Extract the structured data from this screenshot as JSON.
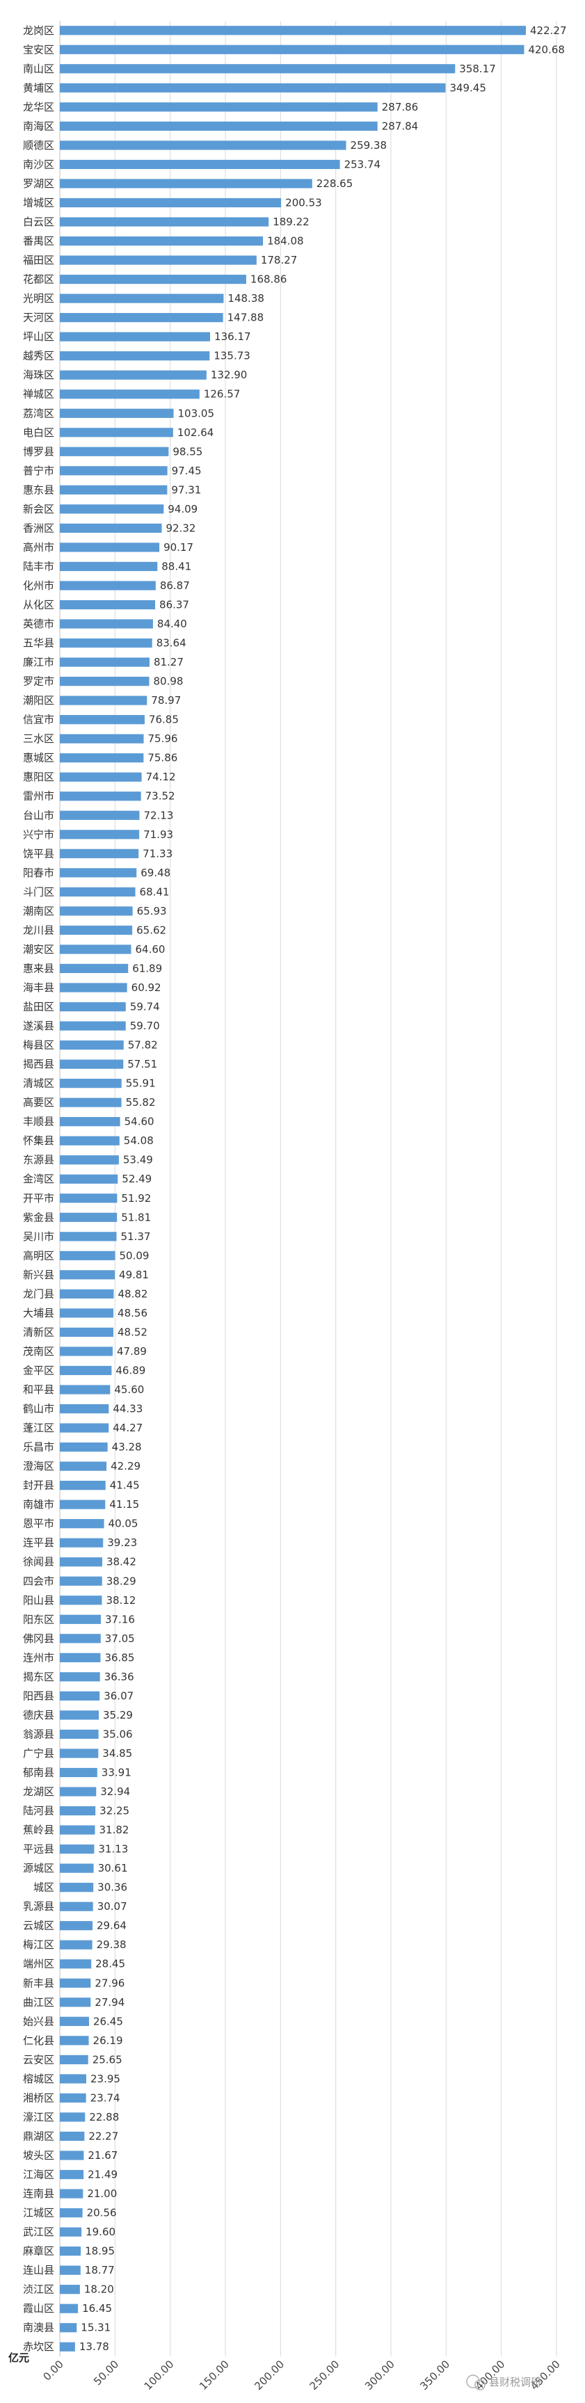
{
  "chart_data": {
    "type": "bar",
    "orientation": "horizontal",
    "unit": "亿元",
    "xlim": [
      0,
      450
    ],
    "ticks": [
      "0.00",
      "50.00",
      "100.00",
      "150.00",
      "200.00",
      "250.00",
      "300.00",
      "350.00",
      "400.00",
      "450.00"
    ],
    "tick_values": [
      0,
      50,
      100,
      150,
      200,
      250,
      300,
      350,
      400,
      450
    ],
    "grid": true,
    "bar_color": "#5b9bd5",
    "categories": [
      "龙岗区",
      "宝安区",
      "南山区",
      "黄埔区",
      "龙华区",
      "南海区",
      "顺德区",
      "南沙区",
      "罗湖区",
      "增城区",
      "白云区",
      "番禺区",
      "福田区",
      "花都区",
      "光明区",
      "天河区",
      "坪山区",
      "越秀区",
      "海珠区",
      "禅城区",
      "荔湾区",
      "电白区",
      "博罗县",
      "普宁市",
      "惠东县",
      "新会区",
      "香洲区",
      "高州市",
      "陆丰市",
      "化州市",
      "从化区",
      "英德市",
      "五华县",
      "廉江市",
      "罗定市",
      "潮阳区",
      "信宜市",
      "三水区",
      "惠城区",
      "惠阳区",
      "雷州市",
      "台山市",
      "兴宁市",
      "饶平县",
      "阳春市",
      "斗门区",
      "潮南区",
      "龙川县",
      "潮安区",
      "惠来县",
      "海丰县",
      "盐田区",
      "遂溪县",
      "梅县区",
      "揭西县",
      "清城区",
      "高要区",
      "丰顺县",
      "怀集县",
      "东源县",
      "金湾区",
      "开平市",
      "紫金县",
      "吴川市",
      "高明区",
      "新兴县",
      "龙门县",
      "大埔县",
      "清新区",
      "茂南区",
      "金平区",
      "和平县",
      "鹤山市",
      "蓬江区",
      "乐昌市",
      "澄海区",
      "封开县",
      "南雄市",
      "恩平市",
      "连平县",
      "徐闻县",
      "四会市",
      "阳山县",
      "阳东区",
      "佛冈县",
      "连州市",
      "揭东区",
      "阳西县",
      "德庆县",
      "翁源县",
      "广宁县",
      "郁南县",
      "龙湖区",
      "陆河县",
      "蕉岭县",
      "平远县",
      "源城区",
      "城区",
      "乳源县",
      "云城区",
      "梅江区",
      "端州区",
      "新丰县",
      "曲江区",
      "始兴县",
      "仁化县",
      "云安区",
      "榕城区",
      "湘桥区",
      "濠江区",
      "鼎湖区",
      "坡头区",
      "江海区",
      "连南县",
      "江城区",
      "武江区",
      "麻章区",
      "连山县",
      "浈江区",
      "霞山区",
      "南澳县",
      "赤坎区"
    ],
    "values": [
      422.27,
      420.68,
      358.17,
      349.45,
      287.86,
      287.84,
      259.38,
      253.74,
      228.65,
      200.53,
      189.22,
      184.08,
      178.27,
      168.86,
      148.38,
      147.88,
      136.17,
      135.73,
      132.9,
      126.57,
      103.05,
      102.64,
      98.55,
      97.45,
      97.31,
      94.09,
      92.32,
      90.17,
      88.41,
      86.87,
      86.37,
      84.4,
      83.64,
      81.27,
      80.98,
      78.97,
      76.85,
      75.96,
      75.86,
      74.12,
      73.52,
      72.13,
      71.93,
      71.33,
      69.48,
      68.41,
      65.93,
      65.62,
      64.6,
      61.89,
      60.92,
      59.74,
      59.7,
      57.82,
      57.51,
      55.91,
      55.82,
      54.6,
      54.08,
      53.49,
      52.49,
      51.92,
      51.81,
      51.37,
      50.09,
      49.81,
      48.82,
      48.56,
      48.52,
      47.89,
      46.89,
      45.6,
      44.33,
      44.27,
      43.28,
      42.29,
      41.45,
      41.15,
      40.05,
      39.23,
      38.42,
      38.29,
      38.12,
      37.16,
      37.05,
      36.85,
      36.36,
      36.07,
      35.29,
      35.06,
      34.85,
      33.91,
      32.94,
      32.25,
      31.82,
      31.13,
      30.61,
      30.36,
      30.07,
      29.64,
      29.38,
      28.45,
      27.96,
      27.94,
      26.45,
      26.19,
      25.65,
      23.95,
      23.74,
      22.88,
      22.27,
      21.67,
      21.49,
      21.0,
      20.56,
      19.6,
      18.95,
      18.77,
      18.2,
      16.45,
      15.31,
      13.78
    ],
    "value_labels": [
      "422.27",
      "420.68",
      "358.17",
      "349.45",
      "287.86",
      "287.84",
      "259.38",
      "253.74",
      "228.65",
      "200.53",
      "189.22",
      "184.08",
      "178.27",
      "168.86",
      "148.38",
      "147.88",
      "136.17",
      "135.73",
      "132.90",
      "126.57",
      "103.05",
      "102.64",
      "98.55",
      "97.45",
      "97.31",
      "94.09",
      "92.32",
      "90.17",
      "88.41",
      "86.87",
      "86.37",
      "84.40",
      "83.64",
      "81.27",
      "80.98",
      "78.97",
      "76.85",
      "75.96",
      "75.86",
      "74.12",
      "73.52",
      "72.13",
      "71.93",
      "71.33",
      "69.48",
      "68.41",
      "65.93",
      "65.62",
      "64.60",
      "61.89",
      "60.92",
      "59.74",
      "59.70",
      "57.82",
      "57.51",
      "55.91",
      "55.82",
      "54.60",
      "54.08",
      "53.49",
      "52.49",
      "51.92",
      "51.81",
      "51.37",
      "50.09",
      "49.81",
      "48.82",
      "48.56",
      "48.52",
      "47.89",
      "46.89",
      "45.60",
      "44.33",
      "44.27",
      "43.28",
      "42.29",
      "41.45",
      "41.15",
      "40.05",
      "39.23",
      "38.42",
      "38.29",
      "38.12",
      "37.16",
      "37.05",
      "36.85",
      "36.36",
      "36.07",
      "35.29",
      "35.06",
      "34.85",
      "33.91",
      "32.94",
      "32.25",
      "31.82",
      "31.13",
      "30.61",
      "30.36",
      "30.07",
      "29.64",
      "29.38",
      "28.45",
      "27.96",
      "27.94",
      "26.45",
      "26.19",
      "25.65",
      "23.95",
      "23.74",
      "22.88",
      "22.27",
      "21.67",
      "21.49",
      "21.00",
      "20.56",
      "19.60",
      "18.95",
      "18.77",
      "18.20",
      "16.45",
      "15.31",
      "13.78"
    ]
  },
  "watermark": "县财税调研"
}
